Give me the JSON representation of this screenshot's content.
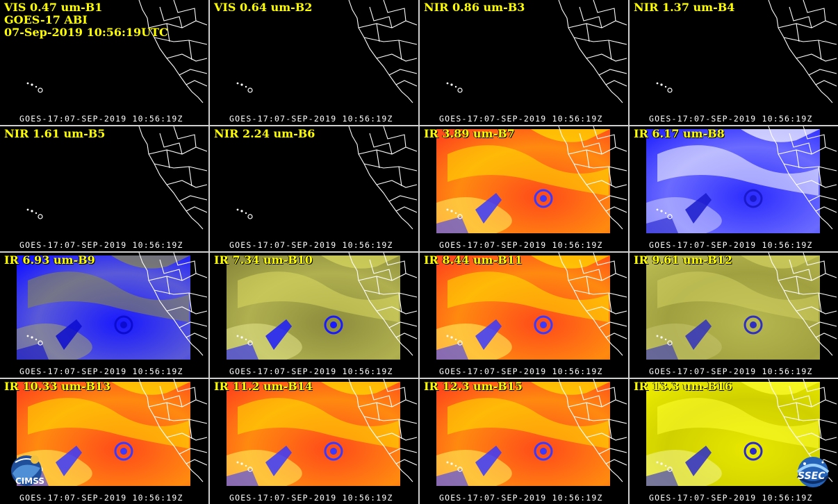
{
  "header": {
    "line2": "GOES-17 ABI",
    "line3": "07-Sep-2019 10:56:19UTC"
  },
  "timestamp": "GOES-17:07-SEP-2019 10:56:19Z",
  "panels": [
    {
      "label": "VIS 0.47 um-B1",
      "palette": "none"
    },
    {
      "label": "VIS 0.64 um-B2",
      "palette": "none"
    },
    {
      "label": "NIR 0.86 um-B3",
      "palette": "none"
    },
    {
      "label": "NIR 1.37 um-B4",
      "palette": "none"
    },
    {
      "label": "NIR 1.61 um-B5",
      "palette": "none"
    },
    {
      "label": "NIR 2.24 um-B6",
      "palette": "none"
    },
    {
      "label": "IR 3.89 um-B7",
      "palette": "red-yellow"
    },
    {
      "label": "IR 6.17 um-B8",
      "palette": "blue-white"
    },
    {
      "label": "IR 6.93 um-B9",
      "palette": "blue-olive"
    },
    {
      "label": "IR 7.34 um-B10",
      "palette": "olive-blue"
    },
    {
      "label": "IR 8.44 um-B11",
      "palette": "red-yellow"
    },
    {
      "label": "IR 9.61 um-B12",
      "palette": "olive"
    },
    {
      "label": "IR 10.33 um-B13",
      "palette": "red-yellow"
    },
    {
      "label": "IR 11.2 um-B14",
      "palette": "red-yellow"
    },
    {
      "label": "IR 12.3 um-B15",
      "palette": "red-yellow"
    },
    {
      "label": "IR 13.3 um-B16",
      "palette": "yellow"
    }
  ],
  "logos": {
    "left": "CIMSS",
    "right": "SSEC"
  },
  "colors": {
    "label": "#ffff00",
    "coast": "#ffffff",
    "separator": "#d0d0d0"
  }
}
